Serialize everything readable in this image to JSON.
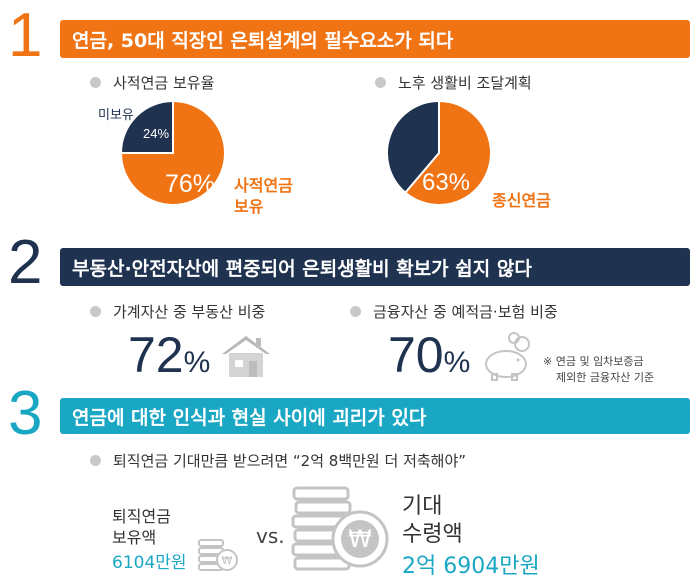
{
  "colors": {
    "orange": "#f07314",
    "navy": "#1f3350",
    "teal": "#1aa7c4",
    "gray": "#c8c8c8"
  },
  "sections": [
    {
      "number": "1",
      "banner": "연금, 50대 직장인 은퇴설계의 필수요소가 되다"
    },
    {
      "number": "2",
      "banner": "부동산·안전자산에 편중되어 은퇴생활비 확보가 쉽지 않다"
    },
    {
      "number": "3",
      "banner": "연금에 대한 인식과 현실 사이에 괴리가 있다"
    }
  ],
  "s1": {
    "left": {
      "title": "사적연금 보유율",
      "main_pct": "76%",
      "main_label": [
        "사적연금",
        "보유"
      ],
      "minor_pct": "24%",
      "minor_label": "미보유",
      "main_value": 76,
      "minor_value": 24
    },
    "right": {
      "title": "노후 생활비 조달계획",
      "main_pct": "63%",
      "main_label": "종신연금",
      "main_value": 63,
      "minor_value": 37
    }
  },
  "s2": {
    "left": {
      "title": "가계자산 중 부동산 비중",
      "value": "72",
      "unit": "%",
      "icon": "house-icon"
    },
    "right": {
      "title": "금융자산 중 예적금·보험 비중",
      "value": "70",
      "unit": "%",
      "icon": "piggy-bank-icon"
    },
    "note": [
      "※ 연금 및 임차보증금",
      "제외한 금융자산 기준"
    ]
  },
  "s3": {
    "title": "퇴직연금 기대만큼 받으려면 “2억 8백만원 더 저축해야”",
    "left_label": [
      "퇴직연금",
      "보유액"
    ],
    "left_value": "6104만원",
    "vs": "vs.",
    "right_label": [
      "기대",
      "수령액"
    ],
    "right_value": "2억 6904만원",
    "coin_icon": "coin-stack-icon",
    "currency_symbol": "₩"
  }
}
